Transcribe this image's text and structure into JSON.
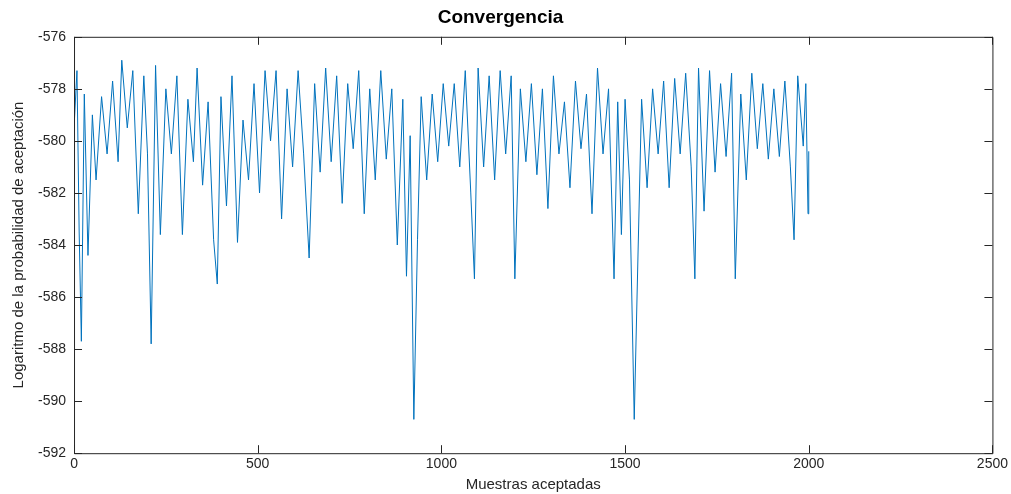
{
  "chart_data": {
    "type": "line",
    "title": "Convergencia",
    "xlabel": "Muestras aceptadas",
    "ylabel": "Logaritmo de la probabilidad de aceptación",
    "xlim": [
      0,
      2500
    ],
    "xticks": [
      0,
      500,
      1000,
      1500,
      2000,
      2500
    ],
    "ylim": [
      -592,
      -576
    ],
    "yticks": [
      -592,
      -590,
      -588,
      -586,
      -584,
      -582,
      -580,
      -578,
      -576
    ],
    "marker": "none",
    "line_style": "solid",
    "series": [
      {
        "color": "#0072bd",
        "x": [
          0,
          8,
          14,
          20,
          28,
          38,
          50,
          60,
          75,
          90,
          105,
          120,
          130,
          145,
          160,
          175,
          190,
          200,
          210,
          222,
          235,
          250,
          265,
          280,
          295,
          310,
          325,
          335,
          350,
          365,
          380,
          390,
          400,
          415,
          430,
          445,
          460,
          475,
          490,
          505,
          520,
          535,
          550,
          565,
          580,
          595,
          610,
          625,
          640,
          655,
          670,
          685,
          700,
          715,
          730,
          745,
          760,
          775,
          790,
          805,
          820,
          835,
          850,
          865,
          880,
          895,
          905,
          915,
          925,
          935,
          945,
          960,
          975,
          990,
          1005,
          1020,
          1035,
          1050,
          1065,
          1080,
          1090,
          1100,
          1115,
          1130,
          1145,
          1160,
          1175,
          1190,
          1200,
          1215,
          1230,
          1245,
          1260,
          1275,
          1290,
          1305,
          1320,
          1335,
          1350,
          1365,
          1380,
          1395,
          1410,
          1425,
          1440,
          1455,
          1470,
          1480,
          1490,
          1500,
          1512,
          1525,
          1535,
          1545,
          1560,
          1575,
          1590,
          1605,
          1620,
          1635,
          1650,
          1665,
          1680,
          1690,
          1700,
          1715,
          1730,
          1745,
          1760,
          1775,
          1790,
          1800,
          1815,
          1830,
          1845,
          1860,
          1875,
          1890,
          1905,
          1920,
          1935,
          1950,
          1960,
          1970,
          1985,
          1992,
          1998,
          2000
        ],
        "values": [
          -579.5,
          -577.3,
          -583.5,
          -587.7,
          -578.2,
          -584.4,
          -579,
          -581.5,
          -578.3,
          -580.5,
          -577.7,
          -580.8,
          -576.9,
          -579.5,
          -577.3,
          -582.8,
          -577.5,
          -580.5,
          -587.8,
          -577.1,
          -583.6,
          -578,
          -580.5,
          -577.5,
          -583.6,
          -578.4,
          -580.8,
          -577.2,
          -581.7,
          -578.5,
          -583.8,
          -585.5,
          -578.3,
          -582.5,
          -577.5,
          -583.9,
          -579.2,
          -581.5,
          -577.8,
          -582,
          -577.3,
          -580,
          -577.3,
          -583,
          -578,
          -581,
          -577.3,
          -580.5,
          -584.5,
          -577.8,
          -581.2,
          -577.2,
          -580.8,
          -577.5,
          -582.4,
          -577.8,
          -580.3,
          -577.3,
          -582.8,
          -578,
          -581.5,
          -577.3,
          -580.7,
          -578,
          -584,
          -578.4,
          -585.2,
          -579.8,
          -590.7,
          -583.8,
          -578.3,
          -581.5,
          -578.2,
          -580.8,
          -577.8,
          -580.2,
          -577.8,
          -581,
          -577.3,
          -582,
          -585.3,
          -577.2,
          -581,
          -577.5,
          -581.5,
          -577.3,
          -580.5,
          -577.5,
          -585.3,
          -578,
          -580.8,
          -577.8,
          -581.3,
          -578,
          -582.6,
          -577.5,
          -580.5,
          -578.5,
          -581.8,
          -577.7,
          -580.3,
          -578.2,
          -582.8,
          -577.2,
          -580.5,
          -578,
          -585.3,
          -578.5,
          -583.6,
          -578.4,
          -581.5,
          -590.7,
          -584.5,
          -578.4,
          -581.8,
          -578,
          -580.5,
          -577.7,
          -581.8,
          -577.6,
          -580.5,
          -577.4,
          -581,
          -585.3,
          -577.2,
          -582.7,
          -577.3,
          -581.2,
          -577.8,
          -580.6,
          -577.4,
          -585.3,
          -578.2,
          -581.5,
          -577.4,
          -580.3,
          -577.8,
          -580.7,
          -578,
          -580.6,
          -577.7,
          -581,
          -583.8,
          -577.5,
          -580.2,
          -577.8,
          -582.8,
          -580.4
        ]
      }
    ]
  }
}
